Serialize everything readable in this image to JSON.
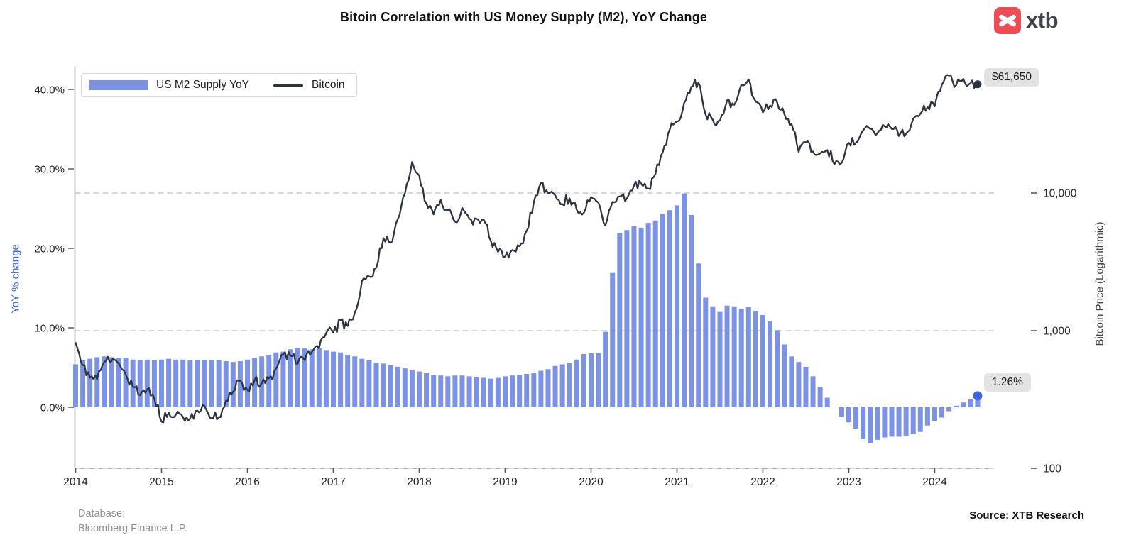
{
  "title": "Bitoin Correlation with US Money Supply (M2), YoY Change",
  "logo": {
    "text": "xtb",
    "icon_color": "#EE4D55"
  },
  "legend": [
    {
      "label": "US M2 Supply YoY",
      "type": "bar",
      "color": "#7C92E5"
    },
    {
      "label": "Bitcoin",
      "type": "line",
      "color": "#2C3440"
    }
  ],
  "axes": {
    "left": {
      "label": "YoY % change",
      "color": "#3E63DE",
      "ticks": [
        {
          "v": 0,
          "label": "0.0%"
        },
        {
          "v": 10,
          "label": "10.0%"
        },
        {
          "v": 20,
          "label": "20.0%"
        },
        {
          "v": 30,
          "label": "30.0%"
        },
        {
          "v": 40,
          "label": "40.0%"
        }
      ]
    },
    "right": {
      "label": "Bitcoin Price (Logarithmic)",
      "ticks": [
        {
          "v": 100,
          "label": "100"
        },
        {
          "v": 1000,
          "label": "1,000"
        },
        {
          "v": 10000,
          "label": "10,000"
        }
      ]
    },
    "x": {
      "ticks": [
        "2014",
        "2015",
        "2016",
        "2017",
        "2018",
        "2019",
        "2020",
        "2021",
        "2022",
        "2023",
        "2024"
      ]
    }
  },
  "annotations": {
    "price": "$61,650",
    "m2": "1.26%"
  },
  "footer": {
    "database_label": "Database:",
    "database_value": "Bloomberg Finance L.P.",
    "source": "Source: XTB Research"
  },
  "chart_data": {
    "type": "combo",
    "title": "Bitoin Correlation with US Money Supply (M2), YoY Change",
    "x_range": [
      "2014-01",
      "2024-07"
    ],
    "freq": "monthly",
    "left_axis": {
      "label": "YoY % change",
      "unit": "%",
      "ticks": [
        0,
        10,
        20,
        30,
        40
      ]
    },
    "right_axis": {
      "label": "Bitcoin Price (Logarithmic)",
      "unit": "USD",
      "scale": "log",
      "ticks": [
        100,
        1000,
        10000
      ]
    },
    "gridlines": "dashed horizontal at right-axis 1,000 and 10,000",
    "legend_position": "top-left",
    "series": [
      {
        "name": "US M2 Supply YoY",
        "type": "bar",
        "unit": "%",
        "values": [
          5.4,
          5.9,
          6.1,
          6.3,
          6.4,
          6.3,
          6.2,
          6.2,
          6.0,
          5.9,
          6.0,
          5.9,
          6.0,
          6.1,
          6.0,
          6.0,
          5.9,
          5.9,
          5.9,
          5.9,
          5.9,
          5.8,
          5.7,
          5.8,
          6.0,
          6.2,
          6.4,
          6.6,
          6.9,
          7.0,
          7.3,
          7.5,
          7.4,
          7.3,
          7.5,
          7.2,
          7.0,
          6.9,
          6.6,
          6.4,
          6.1,
          5.9,
          5.6,
          5.5,
          5.3,
          5.1,
          4.9,
          4.7,
          4.5,
          4.3,
          4.1,
          4.0,
          3.9,
          4.0,
          4.0,
          3.9,
          3.8,
          3.7,
          3.6,
          3.7,
          3.9,
          4.0,
          4.1,
          4.2,
          4.3,
          4.6,
          4.8,
          5.2,
          5.4,
          5.6,
          6.0,
          6.7,
          6.8,
          6.8,
          9.5,
          16.9,
          21.9,
          22.3,
          22.8,
          22.6,
          23.2,
          23.5,
          24.3,
          24.8,
          25.4,
          26.9,
          24.2,
          18.1,
          13.8,
          12.7,
          12.0,
          12.8,
          12.7,
          12.4,
          12.6,
          12.1,
          11.6,
          10.8,
          9.7,
          7.9,
          6.4,
          5.7,
          5.1,
          3.9,
          2.5,
          1.2,
          0.0,
          -1.2,
          -1.9,
          -2.7,
          -4.0,
          -4.5,
          -4.1,
          -3.8,
          -3.7,
          -3.7,
          -3.6,
          -3.4,
          -3.1,
          -2.3,
          -1.7,
          -1.3,
          -0.5,
          0.2,
          0.6,
          1.0,
          1.26
        ],
        "last_value": 1.26
      },
      {
        "name": "Bitcoin",
        "type": "line",
        "unit": "USD",
        "values": [
          815,
          560,
          455,
          445,
          590,
          600,
          580,
          480,
          390,
          340,
          375,
          320,
          218,
          254,
          245,
          236,
          230,
          262,
          284,
          230,
          236,
          310,
          360,
          430,
          370,
          437,
          415,
          450,
          530,
          670,
          655,
          575,
          610,
          700,
          745,
          960,
          965,
          1190,
          1080,
          1350,
          2300,
          2480,
          2870,
          4700,
          4340,
          6450,
          9900,
          16800,
          13400,
          8400,
          7000,
          8900,
          7500,
          6200,
          7800,
          6500,
          6500,
          6400,
          4500,
          3740,
          3460,
          3850,
          4100,
          5320,
          8560,
          11800,
          10000,
          9600,
          8300,
          9150,
          7550,
          7190,
          9350,
          8550,
          5800,
          8620,
          9450,
          9140,
          11350,
          11650,
          10780,
          13800,
          19700,
          29000,
          33100,
          45200,
          58800,
          63500,
          37300,
          34000,
          33500,
          47100,
          43800,
          61300,
          66900,
          46200,
          38500,
          43200,
          45500,
          37650,
          31800,
          19900,
          23300,
          20050,
          19400,
          20500,
          16200,
          16550,
          23130,
          23150,
          28480,
          29250,
          27220,
          30480,
          29230,
          25930,
          26970,
          34650,
          37720,
          42280,
          42580,
          61200,
          71300,
          60640,
          67500,
          62680,
          61650
        ],
        "last_value": 61650
      }
    ]
  }
}
